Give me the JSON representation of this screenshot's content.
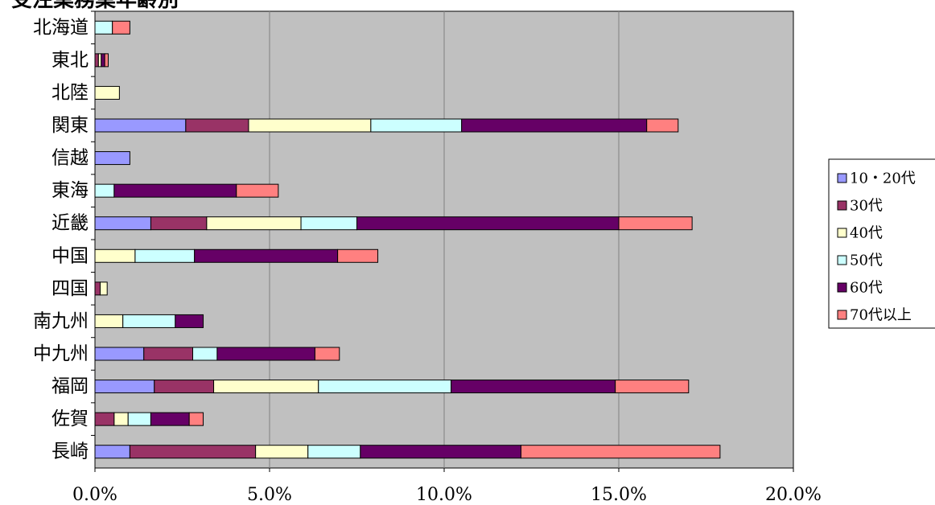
{
  "chart_data": {
    "type": "bar",
    "orientation": "horizontal",
    "stacked": true,
    "title": "受注業務業年齢別",
    "xlabel": "",
    "ylabel": "",
    "xlim": [
      0,
      20
    ],
    "x_ticks": [
      "0.0%",
      "5.0%",
      "10.0%",
      "15.0%",
      "20.0%"
    ],
    "grid": true,
    "legend_position": "right",
    "categories": [
      "北海道",
      "東北",
      "北陸",
      "関東",
      "信越",
      "東海",
      "近畿",
      "中国",
      "四国",
      "南九州",
      "中九州",
      "福岡",
      "佐賀",
      "長崎"
    ],
    "series": [
      {
        "name": "10・20代",
        "color": "#9999ff",
        "values": [
          0,
          0,
          0,
          2.6,
          1.0,
          0,
          1.6,
          0,
          0,
          0,
          1.4,
          1.7,
          0,
          1.0
        ]
      },
      {
        "name": "30代",
        "color": "#993366",
        "values": [
          0,
          0.1,
          0,
          1.8,
          0,
          0,
          1.6,
          0,
          0.15,
          0,
          1.4,
          1.7,
          0.55,
          3.6
        ]
      },
      {
        "name": "40代",
        "color": "#ffffcc",
        "values": [
          0,
          0.08,
          0.7,
          3.5,
          0,
          0,
          2.7,
          1.15,
          0.2,
          0.8,
          0,
          3.0,
          0.4,
          1.5
        ]
      },
      {
        "name": "50代",
        "color": "#ccffff",
        "values": [
          0.5,
          0,
          0,
          2.6,
          0,
          0.55,
          1.6,
          1.7,
          0,
          1.5,
          0.7,
          3.8,
          0.65,
          1.5
        ]
      },
      {
        "name": "60代",
        "color": "#660066",
        "values": [
          0,
          0.1,
          0,
          5.3,
          0,
          3.5,
          7.5,
          4.1,
          0,
          0.8,
          2.8,
          4.7,
          1.1,
          4.6
        ]
      },
      {
        "name": "70代以上",
        "color": "#ff8080",
        "values": [
          0.5,
          0.1,
          0,
          0.9,
          0,
          1.2,
          2.1,
          1.15,
          0,
          0,
          0.7,
          2.1,
          0.4,
          5.7
        ]
      }
    ]
  }
}
